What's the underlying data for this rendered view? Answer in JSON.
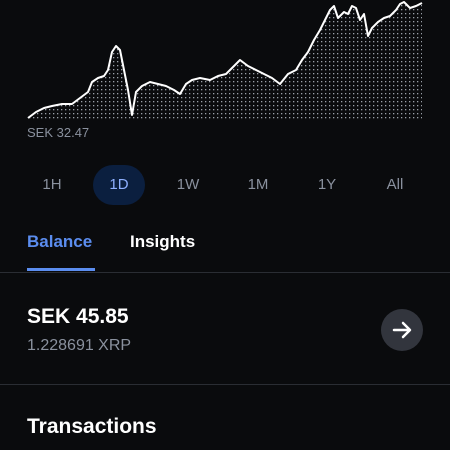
{
  "price_chart": {
    "low_label": "SEK 32.47"
  },
  "time_ranges": {
    "options": [
      "1H",
      "1D",
      "1W",
      "1M",
      "1Y",
      "All"
    ],
    "selected": 1
  },
  "tabs": {
    "options": [
      "Balance",
      "Insights"
    ],
    "selected": 0
  },
  "balance": {
    "fiat": "SEK 45.85",
    "crypto": "1.228691 XRP"
  },
  "transactions": {
    "title": "Transactions"
  }
}
